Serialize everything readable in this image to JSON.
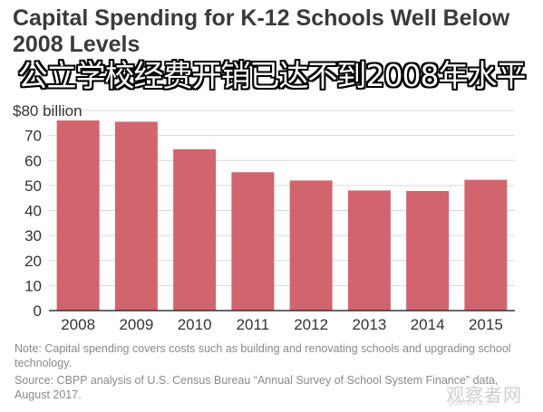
{
  "title": "Capital Spending for K-12 Schools Well Below 2008 Levels",
  "overlay_caption": "公立学校经费开销已达不到2008年水平",
  "notes": {
    "note": "Note:  Capital spending covers costs such as building and renovating schools and upgrading school technology.",
    "source": "Source: CBPP analysis of U.S. Census Bureau “Annual Survey of School System Finance” data, August 2017."
  },
  "watermark": {
    "text": "观察者网",
    "url": "guancha.cn"
  },
  "colors": {
    "bar": "#d2646e",
    "grid": "#d9d9d9",
    "axis": "#333333",
    "title": "#3a3a3a"
  },
  "chart_data": {
    "type": "bar",
    "title": "Capital Spending for K-12 Schools Well Below 2008 Levels",
    "xlabel": "",
    "ylabel": "",
    "categories": [
      "2008",
      "2009",
      "2010",
      "2011",
      "2012",
      "2013",
      "2014",
      "2015"
    ],
    "values": [
      76,
      75.5,
      64.5,
      55.3,
      52,
      48,
      47.8,
      52.3
    ],
    "ylim": [
      0,
      80
    ],
    "yticks": [
      0,
      10,
      20,
      30,
      40,
      50,
      60,
      70,
      80
    ],
    "ytick_labels": [
      "0",
      "10",
      "20",
      "30",
      "40",
      "50",
      "60",
      "70",
      "$80 billion"
    ],
    "grid": true
  }
}
